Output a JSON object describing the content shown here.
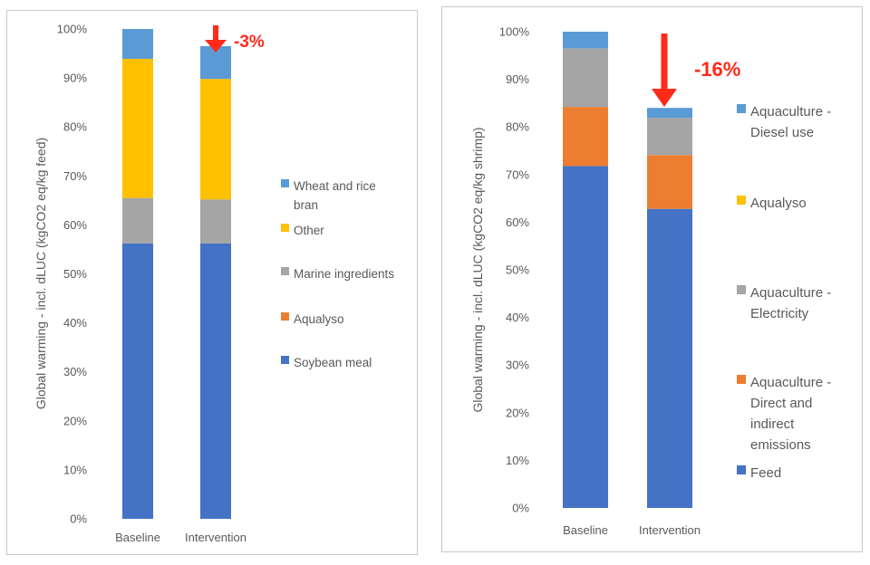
{
  "chart_data": [
    {
      "type": "bar",
      "stacked": true,
      "title": "",
      "xlabel": "",
      "ylabel": "Global warming - incl. dLUC (kgCO2 eq/kg feed)",
      "ylim": [
        0,
        100
      ],
      "yticks": [
        "0%",
        "10%",
        "20%",
        "30%",
        "40%",
        "50%",
        "60%",
        "70%",
        "80%",
        "90%",
        "100%"
      ],
      "categories": [
        "Baseline",
        "Intervention"
      ],
      "series": [
        {
          "name": "Soybean meal",
          "color": "#4472c4",
          "values": [
            56.2,
            56.2
          ]
        },
        {
          "name": "Aqualyso",
          "color": "#ed7d31",
          "values": [
            0,
            0
          ]
        },
        {
          "name": "Marine ingredients",
          "color": "#a5a5a5",
          "values": [
            9.3,
            9.0
          ]
        },
        {
          "name": "Other",
          "color": "#ffc000",
          "values": [
            28.4,
            24.6
          ]
        },
        {
          "name": "Wheat and rice bran",
          "color": "#5b9bd5",
          "values": [
            6.1,
            6.7
          ]
        }
      ],
      "legend_order": [
        "Wheat and rice bran",
        "Other",
        "Marine ingredients",
        "Aqualyso",
        "Soybean meal"
      ],
      "legend_position": "right",
      "annotation": {
        "text": "-3%",
        "color": "#ff2a1a",
        "applies_to": "Intervention"
      }
    },
    {
      "type": "bar",
      "stacked": true,
      "title": "",
      "xlabel": "",
      "ylabel": "Global warming - incl. dLUC (kgCO2 eq/kg shrimp)",
      "ylim": [
        0,
        100
      ],
      "yticks": [
        "0%",
        "10%",
        "20%",
        "30%",
        "40%",
        "50%",
        "60%",
        "70%",
        "80%",
        "90%",
        "100%"
      ],
      "categories": [
        "Baseline",
        "Intervention"
      ],
      "series": [
        {
          "name": "Feed",
          "color": "#4472c4",
          "values": [
            71.8,
            62.8
          ]
        },
        {
          "name": "Aquaculture - Direct and indirect emissions",
          "color": "#ed7d31",
          "values": [
            12.4,
            11.3
          ]
        },
        {
          "name": "Aquaculture - Electricity",
          "color": "#a5a5a5",
          "values": [
            12.3,
            7.8
          ]
        },
        {
          "name": "Aqualyso",
          "color": "#ffc000",
          "values": [
            0,
            0
          ]
        },
        {
          "name": "Aquaculture - Diesel use",
          "color": "#5b9bd5",
          "values": [
            3.5,
            2.1
          ]
        }
      ],
      "legend_order": [
        "Aquaculture - Diesel use",
        "Aqualyso",
        "Aquaculture - Electricity",
        "Aquaculture - Direct and indirect emissions",
        "Feed"
      ],
      "legend_labels": [
        [
          "Aquaculture -",
          "Diesel use"
        ],
        [
          "Aqualyso"
        ],
        [
          "Aquaculture -",
          "Electricity"
        ],
        [
          "Aquaculture -",
          "Direct and",
          "indirect",
          "emissions"
        ],
        [
          "Feed"
        ]
      ],
      "legend_position": "right",
      "annotation": {
        "text": "-16%",
        "color": "#ff2a1a",
        "applies_to": "Intervention"
      }
    }
  ]
}
